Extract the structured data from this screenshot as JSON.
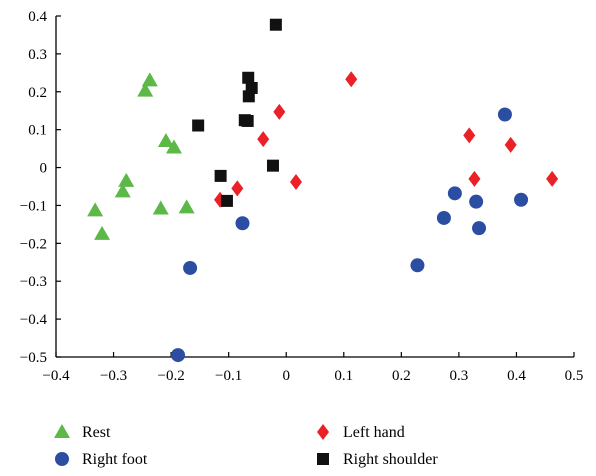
{
  "chart_data": {
    "type": "scatter",
    "title": "",
    "xlabel": "",
    "ylabel": "",
    "xlim": [
      -0.4,
      0.5
    ],
    "ylim": [
      -0.5,
      0.4
    ],
    "xticks": [
      -0.4,
      -0.3,
      -0.2,
      -0.1,
      0,
      0.1,
      0.2,
      0.3,
      0.4,
      0.5
    ],
    "yticks": [
      -0.5,
      -0.4,
      -0.3,
      -0.2,
      -0.1,
      0,
      0.1,
      0.2,
      0.3,
      0.4
    ],
    "xtick_labels": [
      "−0.4",
      "−0.3",
      "−0.2",
      "−0.1",
      "0",
      "0.1",
      "0.2",
      "0.3",
      "0.4",
      "0.5"
    ],
    "ytick_labels": [
      "−0.5",
      "−0.4",
      "−0.3",
      "−0.2",
      "−0.1",
      "0",
      "0.1",
      "0.2",
      "0.3",
      "0.4"
    ],
    "grid": false,
    "legend_position": "bottom",
    "series": [
      {
        "name": "Rest",
        "marker": "triangle",
        "color": "#5cb947",
        "points": [
          [
            -0.237,
            0.23
          ],
          [
            -0.245,
            0.203
          ],
          [
            -0.209,
            0.07
          ],
          [
            -0.195,
            0.053
          ],
          [
            -0.278,
            -0.035
          ],
          [
            -0.284,
            -0.063
          ],
          [
            -0.332,
            -0.113
          ],
          [
            -0.32,
            -0.175
          ],
          [
            -0.218,
            -0.108
          ],
          [
            -0.173,
            -0.105
          ]
        ]
      },
      {
        "name": "Right foot",
        "marker": "circle",
        "color": "#2b4ea2",
        "points": [
          [
            -0.167,
            -0.265
          ],
          [
            -0.188,
            -0.495
          ],
          [
            -0.076,
            -0.147
          ],
          [
            0.228,
            -0.258
          ],
          [
            0.274,
            -0.133
          ],
          [
            0.293,
            -0.068
          ],
          [
            0.33,
            -0.09
          ],
          [
            0.335,
            -0.16
          ],
          [
            0.38,
            0.14
          ],
          [
            0.408,
            -0.085
          ]
        ]
      },
      {
        "name": "Left hand",
        "marker": "diamond",
        "color": "#ea2127",
        "points": [
          [
            0.113,
            0.233
          ],
          [
            -0.012,
            0.147
          ],
          [
            -0.04,
            0.075
          ],
          [
            0.017,
            -0.038
          ],
          [
            -0.085,
            -0.055
          ],
          [
            -0.115,
            -0.085
          ],
          [
            0.318,
            0.085
          ],
          [
            0.39,
            0.06
          ],
          [
            0.327,
            -0.03
          ],
          [
            0.462,
            -0.03
          ]
        ]
      },
      {
        "name": "Right shoulder",
        "marker": "square",
        "color": "#111111",
        "points": [
          [
            -0.018,
            0.377
          ],
          [
            -0.066,
            0.237
          ],
          [
            -0.06,
            0.21
          ],
          [
            -0.065,
            0.188
          ],
          [
            -0.072,
            0.125
          ],
          [
            -0.067,
            0.123
          ],
          [
            -0.153,
            0.111
          ],
          [
            -0.023,
            0.005
          ],
          [
            -0.114,
            -0.022
          ],
          [
            -0.103,
            -0.088
          ]
        ]
      }
    ]
  }
}
